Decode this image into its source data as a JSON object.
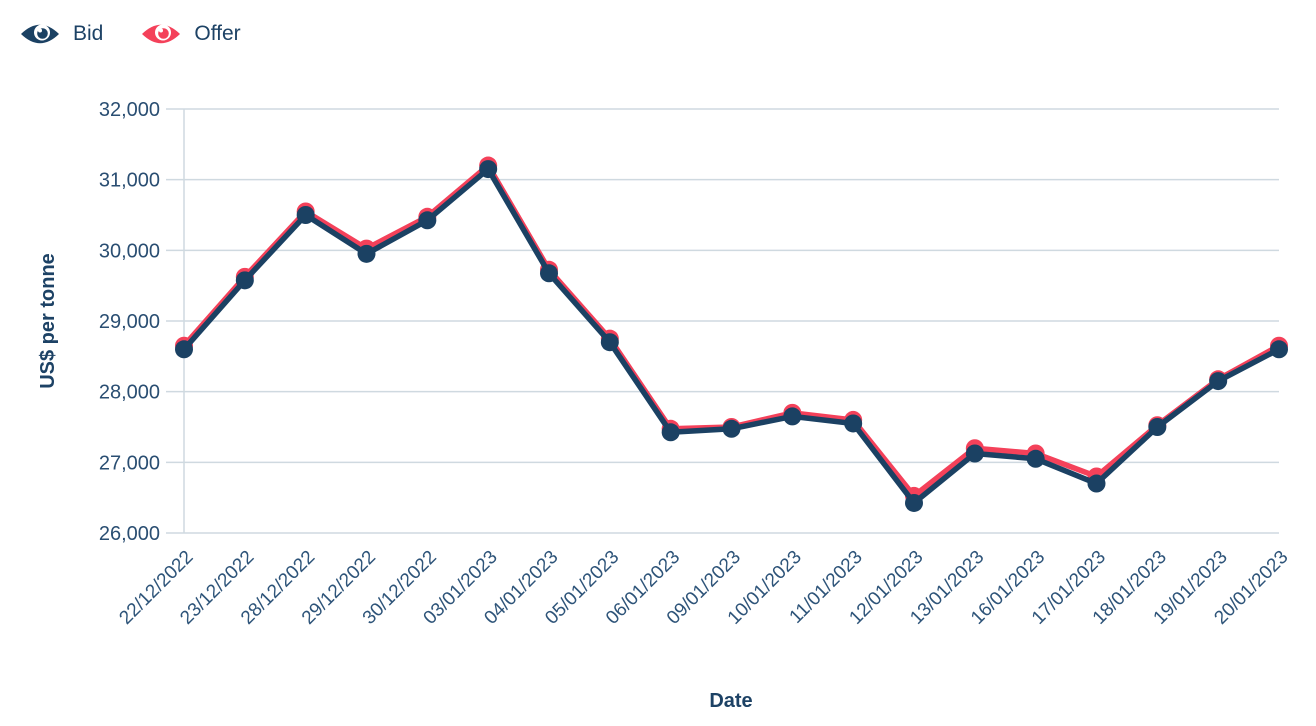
{
  "legend": {
    "items": [
      {
        "label": "Bid",
        "color": "#1b4163"
      },
      {
        "label": "Offer",
        "color": "#f4415a"
      }
    ]
  },
  "colors": {
    "background": "#ffffff",
    "grid": "#cfd9e0",
    "axis_line": "#cfd9e0",
    "y_tick_label": "#2a4e72",
    "x_tick_label": "#2e5479",
    "title_text": "#1d4265",
    "bid": "#1b4163",
    "offer": "#f4415a"
  },
  "chart_data": {
    "type": "line",
    "title": "",
    "xlabel": "Date",
    "ylabel": "US$ per tonne",
    "ylim": [
      26000,
      32000
    ],
    "grid": "horizontal",
    "legend_position": "top-left",
    "marker": "circle",
    "categories": [
      "22/12/2022",
      "23/12/2022",
      "28/12/2022",
      "29/12/2022",
      "30/12/2022",
      "03/01/2023",
      "04/01/2023",
      "05/01/2023",
      "06/01/2023",
      "09/01/2023",
      "10/01/2023",
      "11/01/2023",
      "12/01/2023",
      "13/01/2023",
      "16/01/2023",
      "17/01/2023",
      "18/01/2023",
      "19/01/2023",
      "20/01/2023"
    ],
    "series": [
      {
        "name": "Bid",
        "color": "#1b4163",
        "values": [
          28600,
          29575,
          30500,
          29950,
          30425,
          31150,
          29675,
          28700,
          27425,
          27475,
          27650,
          27550,
          26425,
          27125,
          27050,
          26700,
          27500,
          28150,
          28600
        ]
      },
      {
        "name": "Offer",
        "color": "#f4415a",
        "values": [
          28650,
          29625,
          30550,
          30025,
          30475,
          31200,
          29725,
          28750,
          27475,
          27500,
          27700,
          27600,
          26525,
          27200,
          27125,
          26800,
          27525,
          28175,
          28650
        ]
      }
    ],
    "yticks": [
      {
        "value": 32000,
        "label": "32,000"
      },
      {
        "value": 31000,
        "label": "31,000"
      },
      {
        "value": 30000,
        "label": "30,000"
      },
      {
        "value": 29000,
        "label": "29,000"
      },
      {
        "value": 28000,
        "label": "28,000"
      },
      {
        "value": 27000,
        "label": "27,000"
      },
      {
        "value": 26000,
        "label": "26,000"
      }
    ]
  }
}
